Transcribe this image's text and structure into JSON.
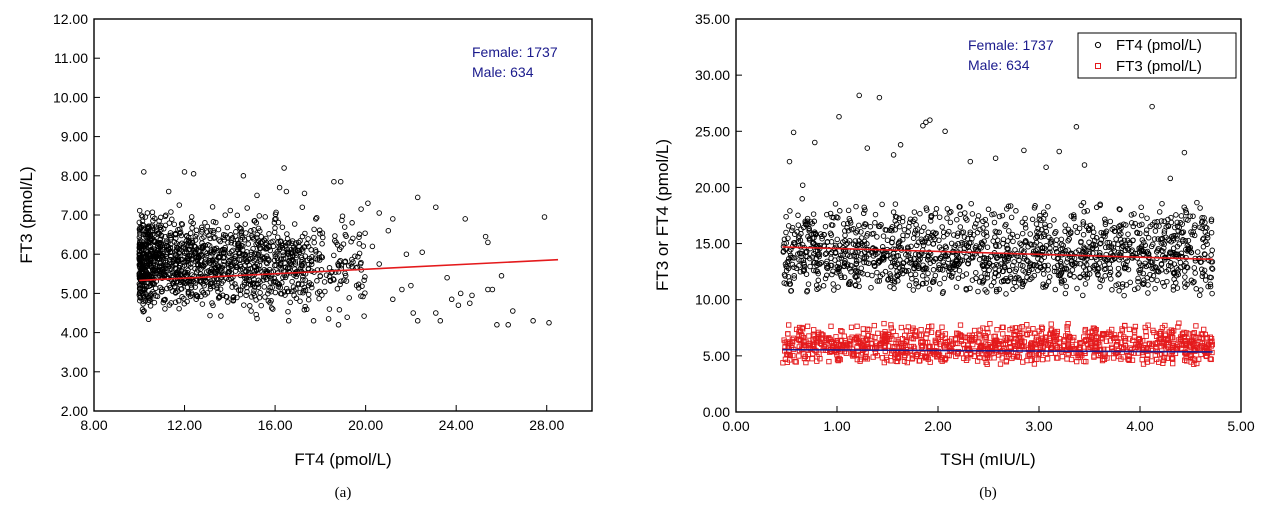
{
  "chart_data": [
    {
      "type": "scatter",
      "panel_label": "(a)",
      "xlabel": "FT4 (pmol/L)",
      "ylabel": "FT3 (pmol/L)",
      "xlim": [
        8,
        30
      ],
      "ylim": [
        2,
        12
      ],
      "xticks": [
        "8.00",
        "12.00",
        "16.00",
        "20.00",
        "24.00",
        "28.00"
      ],
      "yticks": [
        "2.00",
        "3.00",
        "4.00",
        "5.00",
        "6.00",
        "7.00",
        "8.00",
        "9.00",
        "10.00",
        "11.00",
        "12.00"
      ],
      "annotations": [
        "Female: 1737",
        "Male: 634"
      ],
      "annotation_color": "#1a1a8c",
      "series": [
        {
          "marker": "circle",
          "color": "#000000",
          "points": [
            [
              10.2,
              8.1
            ],
            [
              12.0,
              8.1
            ],
            [
              12.4,
              8.05
            ],
            [
              14.6,
              8.0
            ],
            [
              16.4,
              8.2
            ],
            [
              18.6,
              7.85
            ],
            [
              18.9,
              7.85
            ],
            [
              22.3,
              7.45
            ],
            [
              23.1,
              7.2
            ],
            [
              24.4,
              6.9
            ],
            [
              27.9,
              6.95
            ],
            [
              16.2,
              7.7
            ],
            [
              16.5,
              7.6
            ],
            [
              17.3,
              7.55
            ],
            [
              15.2,
              7.5
            ],
            [
              11.3,
              7.6
            ],
            [
              19.8,
              7.15
            ],
            [
              20.1,
              7.3
            ],
            [
              20.6,
              7.05
            ],
            [
              21.2,
              6.9
            ],
            [
              19.4,
              6.8
            ],
            [
              22.5,
              6.05
            ],
            [
              21.8,
              6.0
            ],
            [
              25.3,
              6.45
            ],
            [
              25.4,
              6.3
            ],
            [
              25.6,
              5.1
            ],
            [
              26.0,
              5.45
            ],
            [
              25.4,
              5.1
            ],
            [
              24.2,
              5.0
            ],
            [
              23.6,
              5.4
            ],
            [
              24.7,
              4.95
            ],
            [
              22.3,
              4.3
            ],
            [
              22.1,
              4.5
            ],
            [
              23.3,
              4.3
            ],
            [
              23.1,
              4.5
            ],
            [
              23.8,
              4.85
            ],
            [
              24.1,
              4.7
            ],
            [
              24.6,
              4.75
            ],
            [
              25.8,
              4.2
            ],
            [
              26.3,
              4.2
            ],
            [
              26.5,
              4.55
            ],
            [
              27.4,
              4.3
            ],
            [
              28.1,
              4.25
            ],
            [
              21.2,
              4.85
            ],
            [
              21.6,
              5.1
            ],
            [
              22.0,
              5.2
            ],
            [
              20.6,
              5.75
            ],
            [
              20.3,
              6.2
            ],
            [
              21.0,
              6.6
            ],
            [
              19.6,
              5.2
            ],
            [
              18.8,
              4.2
            ],
            [
              18.4,
              4.6
            ],
            [
              17.7,
              4.3
            ],
            [
              17.1,
              4.8
            ],
            [
              16.6,
              4.3
            ],
            [
              15.9,
              4.6
            ],
            [
              19.1,
              6.5
            ],
            [
              17.8,
              6.9
            ],
            [
              17.2,
              7.2
            ]
          ]
        }
      ],
      "fit_line": {
        "color": "#e41a1c",
        "x": [
          10.0,
          28.5
        ],
        "y": [
          5.33,
          5.86
        ]
      },
      "dense_cluster": {
        "x_range": [
          10.0,
          20.0
        ],
        "y_range": [
          4.2,
          7.4
        ],
        "count": 1500,
        "seed": 17
      }
    },
    {
      "type": "scatter",
      "panel_label": "(b)",
      "xlabel": "TSH (mIU/L)",
      "ylabel": "FT3 or FT4 (pmol/L)",
      "xlim": [
        0,
        5
      ],
      "ylim": [
        0,
        35
      ],
      "xticks": [
        "0.00",
        "1.00",
        "2.00",
        "3.00",
        "4.00",
        "5.00"
      ],
      "yticks": [
        "0.00",
        "5.00",
        "10.00",
        "15.00",
        "20.00",
        "25.00",
        "30.00",
        "35.00"
      ],
      "annotations": [
        "Female: 1737",
        "Male: 634"
      ],
      "annotation_color": "#1a1a8c",
      "legend": {
        "position": "top-right",
        "entries": [
          "FT4 (pmol/L)",
          "FT3 (pmol/L)"
        ]
      },
      "series": [
        {
          "name": "FT4 (pmol/L)",
          "marker": "circle",
          "color": "#000000",
          "points": [
            [
              1.22,
              28.2
            ],
            [
              1.42,
              28.0
            ],
            [
              4.12,
              27.2
            ],
            [
              1.92,
              26.0
            ],
            [
              1.88,
              25.8
            ],
            [
              0.57,
              24.9
            ],
            [
              1.85,
              25.5
            ],
            [
              1.02,
              26.3
            ],
            [
              2.07,
              25.0
            ],
            [
              3.37,
              25.4
            ],
            [
              4.44,
              23.1
            ],
            [
              1.63,
              23.8
            ],
            [
              2.85,
              23.3
            ],
            [
              3.2,
              23.2
            ],
            [
              2.57,
              22.6
            ],
            [
              0.53,
              22.3
            ],
            [
              1.3,
              23.5
            ],
            [
              1.56,
              22.9
            ],
            [
              3.45,
              22.0
            ],
            [
              0.78,
              24.0
            ],
            [
              2.32,
              22.3
            ],
            [
              4.3,
              20.8
            ],
            [
              0.66,
              20.2
            ],
            [
              3.07,
              21.8
            ]
          ]
        },
        {
          "name": "FT3 (pmol/L)",
          "marker": "square",
          "color": "#e41a1c",
          "points": []
        }
      ],
      "fit_lines": [
        {
          "color": "#e41a1c",
          "x": [
            0.46,
            4.72
          ],
          "y": [
            14.7,
            13.6
          ]
        },
        {
          "color": "#1a1a8c",
          "x": [
            0.46,
            4.72
          ],
          "y": [
            5.55,
            5.35
          ]
        }
      ],
      "dense_clusters": [
        {
          "series": 0,
          "x_range": [
            0.46,
            4.72
          ],
          "y_range": [
            10.3,
            19.0
          ],
          "count": 1500,
          "seed": 23
        },
        {
          "series": 1,
          "x_range": [
            0.46,
            4.72
          ],
          "y_range": [
            4.2,
            8.0
          ],
          "count": 1100,
          "seed": 41
        }
      ]
    }
  ]
}
